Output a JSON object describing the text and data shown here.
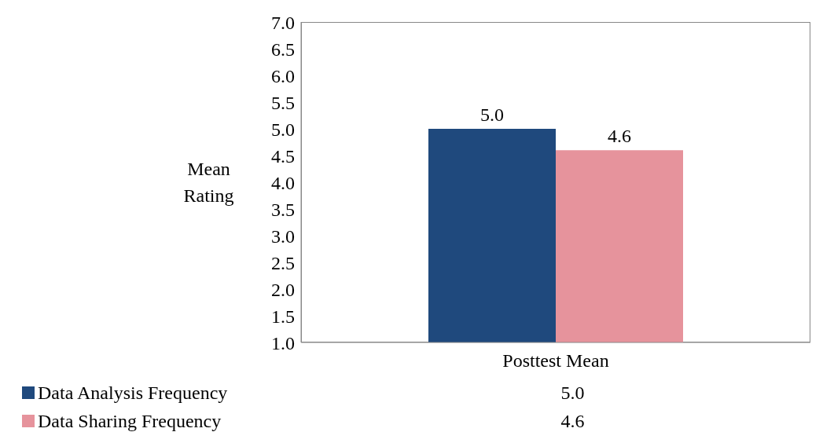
{
  "chart_data": {
    "type": "bar",
    "categories": [
      "Posttest Mean"
    ],
    "ylabel": "Mean Rating",
    "series": [
      {
        "name": "Data Analysis Frequency",
        "color": "#1f497d",
        "values": [
          5.0
        ],
        "value_labels": [
          "5.0"
        ]
      },
      {
        "name": "Data Sharing Frequency",
        "color": "#e6939c",
        "values": [
          4.6
        ],
        "value_labels": [
          "4.6"
        ]
      }
    ],
    "ylim": [
      1,
      7
    ],
    "yticks": [
      {
        "value": 1,
        "label": "1.0"
      },
      {
        "value": 1.5,
        "label": "1.5"
      },
      {
        "value": 2,
        "label": "2.0"
      },
      {
        "value": 2.5,
        "label": "2.5"
      },
      {
        "value": 3,
        "label": "3.0"
      },
      {
        "value": 3.5,
        "label": "3.5"
      },
      {
        "value": 4,
        "label": "4.0"
      },
      {
        "value": 4.5,
        "label": "4.5"
      },
      {
        "value": 5,
        "label": "5.0"
      },
      {
        "value": 5.5,
        "label": "5.5"
      },
      {
        "value": 6,
        "label": "6.0"
      },
      {
        "value": 6.5,
        "label": "6.5"
      },
      {
        "value": 7,
        "label": "7.0"
      }
    ],
    "legend": "bottom"
  }
}
